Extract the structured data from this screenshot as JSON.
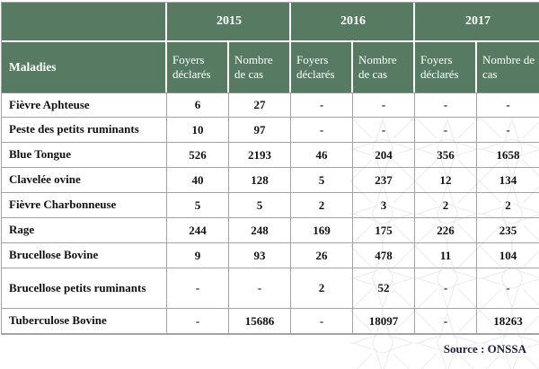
{
  "table": {
    "corner_label": "",
    "maladies_label": "Maladies",
    "years": [
      "2015",
      "2016",
      "2017"
    ],
    "sub_columns": [
      "Foyers déclarés",
      "Nombre de cas"
    ],
    "rows": [
      {
        "maladie": "Fièvre Aphteuse",
        "values": [
          "6",
          "27",
          "-",
          "-",
          "-",
          "-"
        ]
      },
      {
        "maladie": "Peste des petits ruminants",
        "values": [
          "10",
          "97",
          "-",
          "-",
          "-",
          "-"
        ]
      },
      {
        "maladie": "Blue Tongue",
        "values": [
          "526",
          "2193",
          "46",
          "204",
          "356",
          "1658"
        ]
      },
      {
        "maladie": "Clavelée ovine",
        "values": [
          "40",
          "128",
          "5",
          "237",
          "12",
          "134"
        ]
      },
      {
        "maladie": "Fièvre Charbonneuse",
        "values": [
          "5",
          "5",
          "2",
          "3",
          "2",
          "2"
        ]
      },
      {
        "maladie": "Rage",
        "values": [
          "244",
          "248",
          "169",
          "175",
          "226",
          "235"
        ]
      },
      {
        "maladie": "Brucellose Bovine",
        "values": [
          "9",
          "93",
          "26",
          "478",
          "11",
          "104"
        ]
      },
      {
        "maladie": "Brucellose petits ruminants",
        "values": [
          "-",
          "-",
          "2",
          "52",
          "-",
          "-"
        ]
      },
      {
        "maladie": "Tuberculose Bovine",
        "values": [
          "-",
          "15686",
          "-",
          "18097",
          "-",
          "18263"
        ]
      }
    ]
  },
  "footer": {
    "source": "Source : ONSSA"
  },
  "colors": {
    "header_green": "#567a62",
    "header_text": "#ffffff",
    "body_text": "#111111",
    "grid_line": "#a3a3a3",
    "source_text": "#1b2240"
  }
}
